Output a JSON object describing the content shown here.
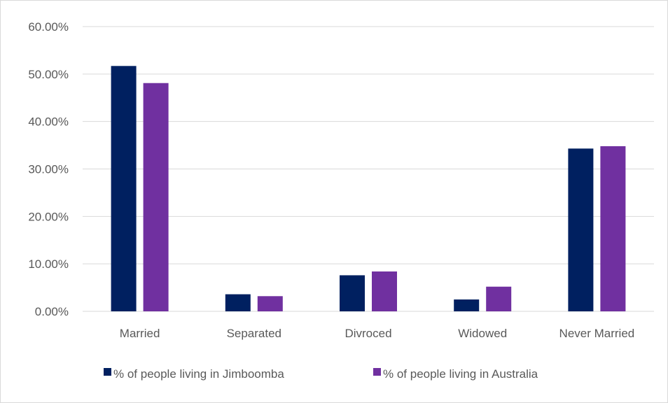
{
  "chart_data": {
    "type": "bar",
    "categories": [
      "Married",
      "Separated",
      "Divroced",
      "Widowed",
      "Never Married"
    ],
    "series": [
      {
        "name": "% of people living in Jimboomba",
        "color": "#002060",
        "values": [
          51.7,
          3.6,
          7.6,
          2.5,
          34.3
        ]
      },
      {
        "name": "% of people living in Australia",
        "color": "#7030A0",
        "values": [
          48.1,
          3.2,
          8.4,
          5.2,
          34.8
        ]
      }
    ],
    "ylim": [
      0,
      60
    ],
    "yticks": [
      "0.00%",
      "10.00%",
      "20.00%",
      "30.00%",
      "40.00%",
      "50.00%",
      "60.00%"
    ],
    "grid": true,
    "legend_position": "bottom"
  }
}
